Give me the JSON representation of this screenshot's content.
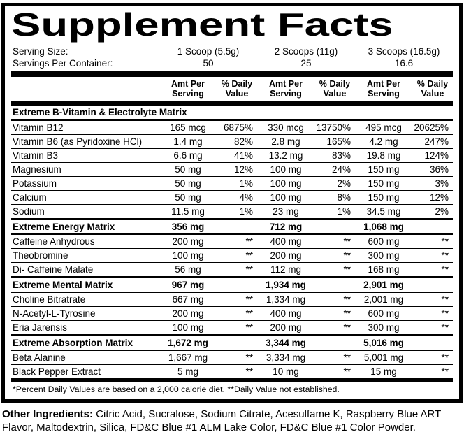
{
  "title": "Supplement Facts",
  "colors": {
    "text": "#000000",
    "background": "#ffffff"
  },
  "serving": {
    "size_label": "Serving Size:",
    "sizes": [
      "1 Scoop (5.5g)",
      "2 Scoops (11g)",
      "3 Scoops (16.5g)"
    ],
    "container_label": "Servings Per Container:",
    "servings_per_container": [
      "50",
      "25",
      "16.6"
    ]
  },
  "columns": {
    "amt": "Amt Per Serving",
    "dv": "% Daily Value"
  },
  "sections": [
    {
      "name": "Extreme B-Vitamin & Electrolyte Matrix",
      "amounts": [
        "",
        "",
        ""
      ],
      "rows": [
        {
          "name": "Vitamin B12",
          "values": [
            "165 mcg",
            "6875%",
            "330 mcg",
            "13750%",
            "495 mcg",
            "20625%"
          ]
        },
        {
          "name": "Vitamin B6 (as Pyridoxine HCl)",
          "values": [
            "1.4 mg",
            "82%",
            "2.8 mg",
            "165%",
            "4.2 mg",
            "247%"
          ]
        },
        {
          "name": "Vitamin B3",
          "values": [
            "6.6 mg",
            "41%",
            "13.2 mg",
            "83%",
            "19.8 mg",
            "124%"
          ]
        },
        {
          "name": "Magnesium",
          "values": [
            "50 mg",
            "12%",
            "100 mg",
            "24%",
            "150 mg",
            "36%"
          ]
        },
        {
          "name": "Potassium",
          "values": [
            "50 mg",
            "1%",
            "100 mg",
            "2%",
            "150 mg",
            "3%"
          ]
        },
        {
          "name": "Calcium",
          "values": [
            "50 mg",
            "4%",
            "100 mg",
            "8%",
            "150 mg",
            "12%"
          ]
        },
        {
          "name": "Sodium",
          "values": [
            "11.5 mg",
            "1%",
            "23 mg",
            "1%",
            "34.5 mg",
            "2%"
          ]
        }
      ]
    },
    {
      "name": "Extreme Energy Matrix",
      "amounts": [
        "356 mg",
        "712 mg",
        "1,068 mg"
      ],
      "rows": [
        {
          "name": "Caffeine Anhydrous",
          "values": [
            "200 mg",
            "**",
            "400 mg",
            "**",
            "600 mg",
            "**"
          ]
        },
        {
          "name": "Theobromine",
          "values": [
            "100 mg",
            "**",
            "200 mg",
            "**",
            "300 mg",
            "**"
          ]
        },
        {
          "name": "Di- Caffeine Malate",
          "values": [
            "56 mg",
            "**",
            "112 mg",
            "**",
            "168 mg",
            "**"
          ]
        }
      ]
    },
    {
      "name": "Extreme Mental Matrix",
      "amounts": [
        "967 mg",
        "1,934 mg",
        "2,901 mg"
      ],
      "rows": [
        {
          "name": "Choline Bitratrate",
          "values": [
            "667 mg",
            "**",
            "1,334 mg",
            "**",
            "2,001 mg",
            "**"
          ]
        },
        {
          "name": "N-Acetyl-L-Tyrosine",
          "values": [
            "200 mg",
            "**",
            "400 mg",
            "**",
            "600 mg",
            "**"
          ]
        },
        {
          "name": "Eria Jarensis",
          "values": [
            "100 mg",
            "**",
            "200 mg",
            "**",
            "300 mg",
            "**"
          ]
        }
      ]
    },
    {
      "name": "Extreme Absorption Matrix",
      "amounts": [
        "1,672 mg",
        "3,344 mg",
        "5,016 mg"
      ],
      "rows": [
        {
          "name": "Beta Alanine",
          "values": [
            "1,667 mg",
            "**",
            "3,334 mg",
            "**",
            "5,001 mg",
            "**"
          ]
        },
        {
          "name": "Black Pepper Extract",
          "values": [
            "5 mg",
            "**",
            "10 mg",
            "**",
            "15 mg",
            "**"
          ]
        }
      ]
    }
  ],
  "footnote": "*Percent Daily Values are based on a 2,000 calorie diet. **Daily Value not established.",
  "other_ingredients": {
    "label": "Other Ingredients:",
    "text": "Citric Acid, Sucralose, Sodium Citrate, Acesulfame K, Raspberry Blue ART Flavor, Maltodextrin, Silica, FD&C Blue #1 ALM Lake Color, FD&C Blue #1 Color Powder."
  }
}
